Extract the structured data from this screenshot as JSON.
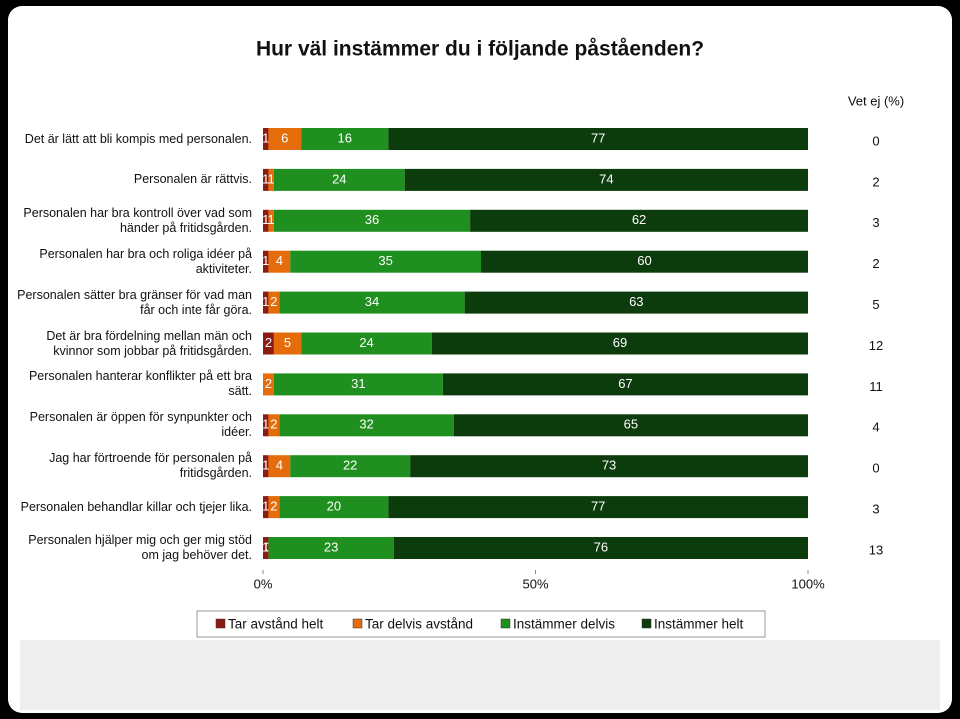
{
  "chart_data": {
    "type": "bar",
    "orientation": "horizontal",
    "stacked": true,
    "title": "Hur väl instämmer du i följande påståenden?",
    "categories": [
      "Det är lätt att bli kompis med personalen.",
      "Personalen är rättvis.",
      "Personalen har bra kontroll över vad som händer på fritidsgården.",
      "Personalen har bra och roliga idéer på aktiviteter.",
      "Personalen sätter bra gränser för vad man får och inte får göra.",
      "Det är bra fördelning mellan män och kvinnor som jobbar på fritidsgården.",
      "Personalen hanterar konflikter på ett bra sätt.",
      "Personalen är öppen för synpunkter och idéer.",
      "Jag har förtroende för personalen på fritidsgården.",
      "Personalen behandlar killar och tjejer lika.",
      "Personalen hjälper mig och ger mig stöd om jag behöver det."
    ],
    "series": [
      {
        "name": "Tar avstånd helt",
        "color": "#8c1c13",
        "values": [
          1,
          1,
          1,
          1,
          1,
          2,
          0,
          1,
          1,
          1,
          1
        ]
      },
      {
        "name": "Tar delvis avstånd",
        "color": "#e46c0a",
        "values": [
          6,
          1,
          1,
          4,
          2,
          5,
          2,
          2,
          4,
          2,
          0
        ]
      },
      {
        "name": "Instämmer delvis",
        "color": "#1f8f1f",
        "values": [
          16,
          24,
          36,
          35,
          34,
          24,
          31,
          32,
          22,
          20,
          23
        ]
      },
      {
        "name": "Instämmer helt",
        "color": "#0c3b0c",
        "values": [
          77,
          74,
          62,
          60,
          63,
          69,
          67,
          65,
          73,
          77,
          76
        ]
      }
    ],
    "xlim": [
      0,
      100
    ],
    "xticks": [
      {
        "value": 0,
        "label": "0%"
      },
      {
        "value": 50,
        "label": "50%"
      },
      {
        "value": 100,
        "label": "100%"
      }
    ],
    "legend": "bottom",
    "vet_ej": {
      "title": "Vet ej (%)",
      "values": [
        0,
        2,
        3,
        2,
        5,
        12,
        11,
        4,
        0,
        3,
        13
      ]
    }
  }
}
